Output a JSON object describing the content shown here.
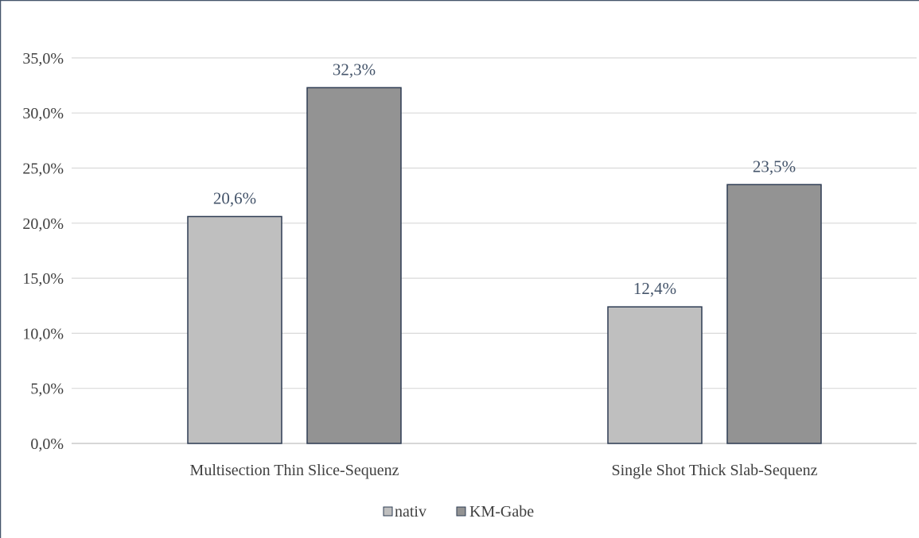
{
  "chart_data": {
    "type": "bar",
    "categories": [
      "Multisection Thin Slice-Sequenz",
      "Single Shot Thick Slab-Sequenz"
    ],
    "series": [
      {
        "name": "nativ",
        "values": [
          20.6,
          12.4
        ],
        "labels": [
          "20,6%",
          "12,4%"
        ],
        "color": "#bfbfbf"
      },
      {
        "name": "KM-Gabe",
        "values": [
          32.3,
          23.5
        ],
        "labels": [
          "32,3%",
          "23,5%"
        ],
        "color": "#939393"
      }
    ],
    "ylim": [
      0,
      35
    ],
    "yticks": [
      0,
      5,
      10,
      15,
      20,
      25,
      30,
      35
    ],
    "ytick_labels": [
      "0,0%",
      "5,0%",
      "10,0%",
      "15,0%",
      "20,0%",
      "25,0%",
      "30,0%",
      "35,0%"
    ],
    "grid": true,
    "legend_position": "bottom",
    "bar_edge_color": "#2e3c53",
    "frame_color": "#44546a"
  }
}
